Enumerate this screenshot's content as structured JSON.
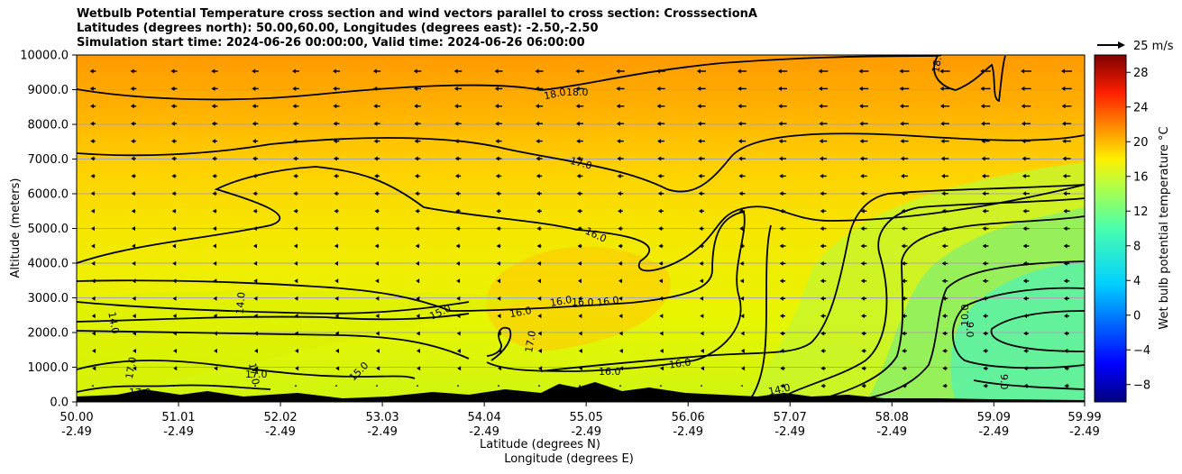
{
  "chart_data": {
    "type": "heatmap",
    "title_lines": [
      "Wetbulb Potential Temperature cross section and wind vectors parallel to cross section: CrosssectionA",
      "Latitudes (degrees north): 50.00,60.00, Longitudes (degrees east): -2.50,-2.50",
      "Simulation start time: 2024-06-26 00:00:00, Valid time: 2024-06-26 06:00:00"
    ],
    "ylabel": "Altitude (meters)",
    "xlabel_lat": "Latitude (degrees N)",
    "xlabel_lon": "Longitude (degrees E)",
    "ylim": [
      0,
      10000
    ],
    "y_ticks": [
      "0.0",
      "1000.0",
      "2000.0",
      "3000.0",
      "4000.0",
      "5000.0",
      "6000.0",
      "7000.0",
      "8000.0",
      "9000.0",
      "10000.0"
    ],
    "x_ticks_lat": [
      "50.00",
      "51.01",
      "52.02",
      "53.03",
      "54.04",
      "55.05",
      "56.06",
      "57.07",
      "58.08",
      "59.09",
      "59.99"
    ],
    "x_ticks_lon": [
      "-2.49",
      "-2.49",
      "-2.49",
      "-2.49",
      "-2.49",
      "-2.49",
      "-2.49",
      "-2.49",
      "-2.49",
      "-2.49",
      "-2.49"
    ],
    "grid": "horizontal",
    "colorbar": {
      "label": "Wet bulb potential temperature °C",
      "ticks": [
        "−8",
        "−4",
        "0",
        "4",
        "8",
        "12",
        "16",
        "20",
        "24",
        "28"
      ],
      "range": [
        -10,
        30
      ]
    },
    "quiver_key": "25 m/s",
    "contour_labels": [
      "18.0",
      "18.0",
      "18.0",
      "17.0",
      "16.0",
      "16.0",
      "16.0",
      "16.0",
      "16.0",
      "15.0",
      "15.0",
      "14.0",
      "14.0",
      "17.0",
      "17.0",
      "17.0",
      "17.0",
      "17.0",
      "16.0",
      "16.0",
      "14.0",
      "10.0",
      "9.0",
      "9.0"
    ],
    "colors": {
      "warm": "#ffa500",
      "mid": "#f2ef0d",
      "cool": "#60f09a"
    }
  }
}
